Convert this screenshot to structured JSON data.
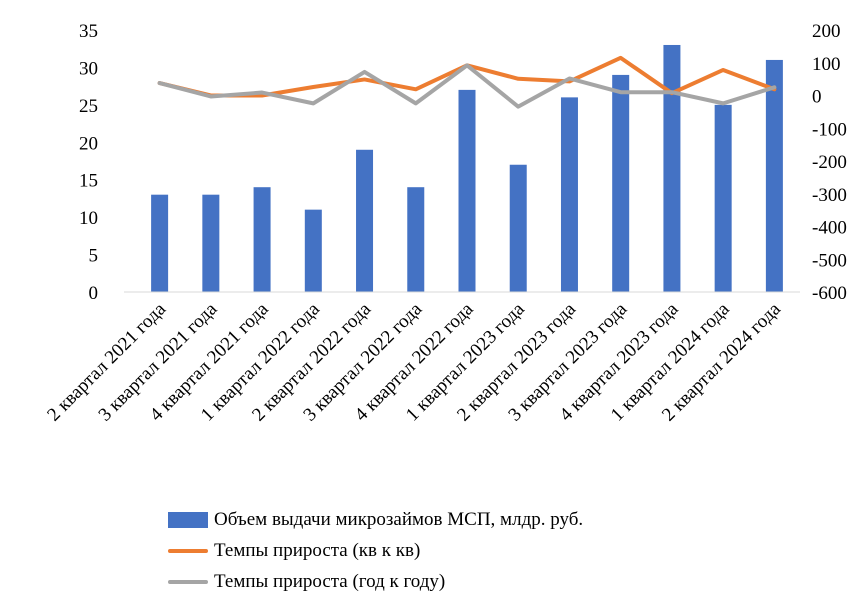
{
  "chart_data": {
    "type": "bar",
    "categories": [
      "2 квартал 2021 года",
      "3 квартал 2021 года",
      "4 квартал 2021 года",
      "1 квартал 2022 года",
      "2 квартал 2022 года",
      "3 квартал 2022 года",
      "4 квартал 2022 года",
      "1 квартал 2023 года",
      "2 квартал 2023 года",
      "3 квартал 2023 года",
      "4 квартал 2023 года",
      "1 квартал 2024 года",
      "2 квартал 2024 года"
    ],
    "series": [
      {
        "name": "Объем выдачи микрозаймов МСП, млдр. руб.",
        "kind": "bar",
        "axis": "left",
        "color": "#4472C4",
        "values": [
          13,
          13,
          14,
          11,
          19,
          14,
          27,
          17,
          26,
          29,
          33,
          25,
          31
        ]
      },
      {
        "name": "Темпы прироста (кв к кв)",
        "kind": "line",
        "axis": "right",
        "color": "#ED7D31",
        "values": [
          38,
          0,
          0,
          26,
          49,
          19,
          92,
          51,
          43,
          115,
          7,
          78,
          19
        ]
      },
      {
        "name": "Темпы прироста (год к году)",
        "kind": "line",
        "axis": "right",
        "color": "#A5A5A5",
        "values": [
          38,
          -3,
          9,
          -24,
          72,
          -24,
          92,
          -34,
          52,
          10,
          10,
          -24,
          25
        ]
      }
    ],
    "y_left": {
      "ticks": [
        0,
        5,
        10,
        15,
        20,
        25,
        30,
        35
      ],
      "ylim": [
        0,
        35
      ]
    },
    "y_right": {
      "ticks": [
        200,
        100,
        0,
        -100,
        -200,
        -300,
        -400,
        -500,
        -600
      ],
      "ylim": [
        -600,
        200
      ]
    },
    "legend_position": "bottom",
    "grid": false
  }
}
